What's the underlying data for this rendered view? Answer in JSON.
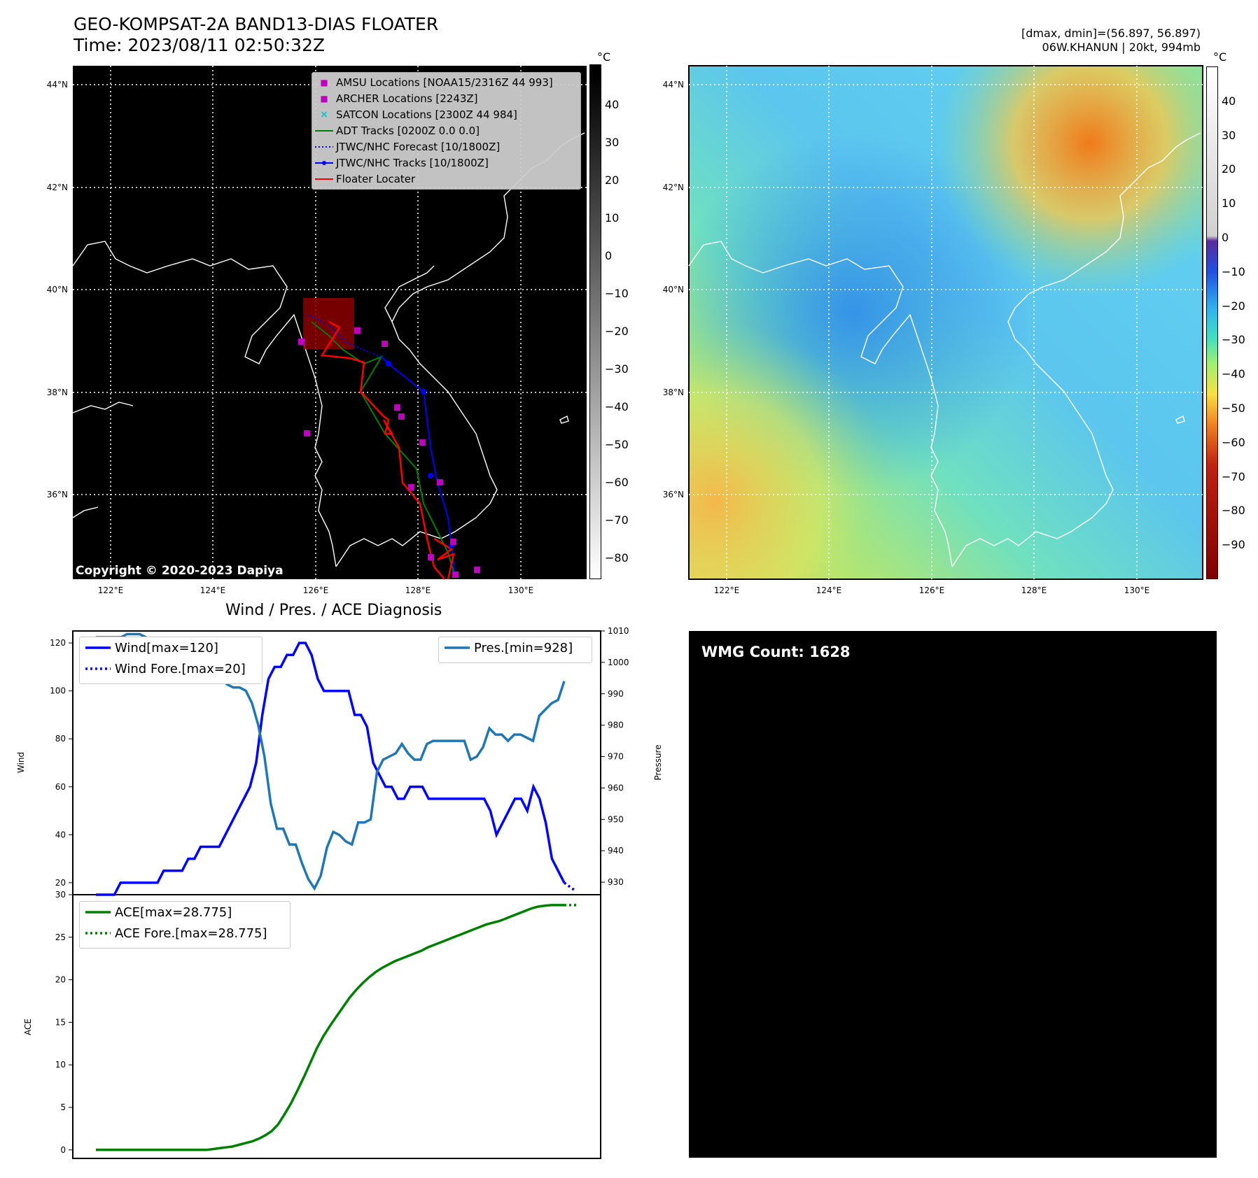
{
  "header": {
    "title_line1": "GEO-KOMPSAT-2A BAND13-DIAS FLOATER",
    "title_line2": "Time: 2023/08/11 02:50:32Z",
    "right_line1": "[dmax, dmin]=(56.897, 56.897)",
    "right_line2": "06W.KHANUN | 20kt, 994mb"
  },
  "map_left": {
    "lat_labels": [
      "44°N",
      "42°N",
      "40°N",
      "38°N",
      "36°N"
    ],
    "lon_labels": [
      "122°E",
      "124°E",
      "126°E",
      "128°E",
      "130°E"
    ],
    "copyright": "Copyright © 2020-2023 Dapiya",
    "legend": [
      {
        "label": "AMSU Locations [NOAA15/2316Z 44 993]",
        "marker": "square",
        "color": "#c000c0"
      },
      {
        "label": "ARCHER Locations [2243Z]",
        "marker": "square",
        "color": "#c000c0"
      },
      {
        "label": "SATCON Locations [2300Z 44 984]",
        "marker": "x",
        "color": "#17becf"
      },
      {
        "label": "ADT Tracks [0200Z 0.0 0.0]",
        "marker": "line",
        "color": "#008000"
      },
      {
        "label": "JTWC/NHC Forecast [10/1800Z]",
        "marker": "dotted",
        "color": "#0000ff"
      },
      {
        "label": "JTWC/NHC Tracks [10/1800Z]",
        "marker": "line-dot",
        "color": "#0000ff"
      },
      {
        "label": "Floater Locater",
        "marker": "line",
        "color": "#ff0000"
      }
    ],
    "colorbar_unit": "°C",
    "colorbar_ticks": [
      "40",
      "30",
      "20",
      "10",
      "0",
      "−10",
      "−20",
      "−30",
      "−40",
      "−50",
      "−60",
      "−70",
      "−80"
    ]
  },
  "map_right": {
    "lat_labels": [
      "44°N",
      "42°N",
      "40°N",
      "38°N",
      "36°N"
    ],
    "lon_labels": [
      "122°E",
      "124°E",
      "126°E",
      "128°E",
      "130°E"
    ],
    "colorbar_unit": "°C",
    "colorbar_ticks": [
      "40",
      "30",
      "20",
      "10",
      "0",
      "−10",
      "−20",
      "−30",
      "−40",
      "−50",
      "−60",
      "−70",
      "−80",
      "−90"
    ]
  },
  "wmg": {
    "label": "WMG Count: 1628"
  },
  "chart_data": [
    {
      "type": "line",
      "title": "Wind / Pres. / ACE Diagnosis",
      "ylabel": "Wind",
      "ylim": [
        15,
        125
      ],
      "y_ticks": [
        20,
        40,
        60,
        80,
        100,
        120
      ],
      "series": [
        {
          "name": "Wind[max=120]",
          "color": "#0000ff",
          "values": [
            15,
            15,
            15,
            15,
            20,
            20,
            20,
            20,
            20,
            20,
            20,
            25,
            25,
            25,
            25,
            30,
            30,
            35,
            35,
            35,
            35,
            40,
            45,
            50,
            55,
            60,
            70,
            90,
            105,
            110,
            110,
            115,
            115,
            120,
            120,
            115,
            105,
            100,
            100,
            100,
            100,
            100,
            90,
            90,
            85,
            70,
            65,
            60,
            60,
            55,
            55,
            60,
            60,
            60,
            55,
            55,
            55,
            55,
            55,
            55,
            55,
            55,
            55,
            55,
            50,
            40,
            45,
            50,
            55,
            55,
            50,
            60,
            55,
            45,
            30,
            25,
            20
          ]
        },
        {
          "name": "Wind Fore.[max=20]",
          "color": "#0000ff",
          "dotted": true,
          "values": [
            20,
            17
          ]
        }
      ]
    },
    {
      "type": "line",
      "ylabel": "Pressure",
      "ylim": [
        926,
        1010
      ],
      "y_ticks": [
        930,
        940,
        950,
        960,
        970,
        980,
        990,
        1000,
        1010
      ],
      "series": [
        {
          "name": "Pres.[min=928]",
          "color": "#1f77b4",
          "values": [
            1008,
            1008,
            1008,
            1008,
            1008,
            1009,
            1009,
            1009,
            1008,
            1007,
            1007,
            1006,
            1006,
            1005,
            1005,
            1005,
            1003,
            1000,
            998,
            998,
            995,
            993,
            992,
            992,
            991,
            987,
            980,
            970,
            955,
            947,
            947,
            942,
            942,
            936,
            931,
            928,
            932,
            941,
            946,
            945,
            943,
            942,
            949,
            949,
            950,
            965,
            969,
            970,
            971,
            974,
            971,
            969,
            969,
            974,
            975,
            975,
            975,
            975,
            975,
            975,
            969,
            970,
            973,
            979,
            977,
            977,
            975,
            977,
            977,
            976,
            975,
            983,
            985,
            987,
            988,
            994
          ]
        }
      ]
    },
    {
      "type": "line",
      "ylabel": "ACE",
      "ylim": [
        -1,
        30
      ],
      "y_ticks": [
        0,
        5,
        10,
        15,
        20,
        25,
        30
      ],
      "series": [
        {
          "name": "ACE[max=28.775]",
          "color": "#008000",
          "values": [
            0,
            0,
            0,
            0,
            0,
            0,
            0,
            0,
            0,
            0,
            0,
            0,
            0,
            0,
            0,
            0,
            0,
            0,
            0.1,
            0.2,
            0.3,
            0.4,
            0.6,
            0.8,
            1.0,
            1.3,
            1.7,
            2.2,
            3.0,
            4.2,
            5.5,
            7.0,
            8.6,
            10.3,
            12.0,
            13.4,
            14.6,
            15.7,
            16.8,
            17.9,
            18.8,
            19.6,
            20.3,
            20.9,
            21.4,
            21.8,
            22.2,
            22.5,
            22.8,
            23.1,
            23.4,
            23.8,
            24.1,
            24.4,
            24.7,
            25.0,
            25.3,
            25.6,
            25.9,
            26.2,
            26.5,
            26.7,
            26.9,
            27.2,
            27.5,
            27.8,
            28.1,
            28.4,
            28.6,
            28.7,
            28.775,
            28.775,
            28.775
          ]
        },
        {
          "name": "ACE Fore.[max=28.775]",
          "color": "#008000",
          "dotted": true,
          "values": [
            28.775,
            28.775
          ]
        }
      ]
    }
  ]
}
